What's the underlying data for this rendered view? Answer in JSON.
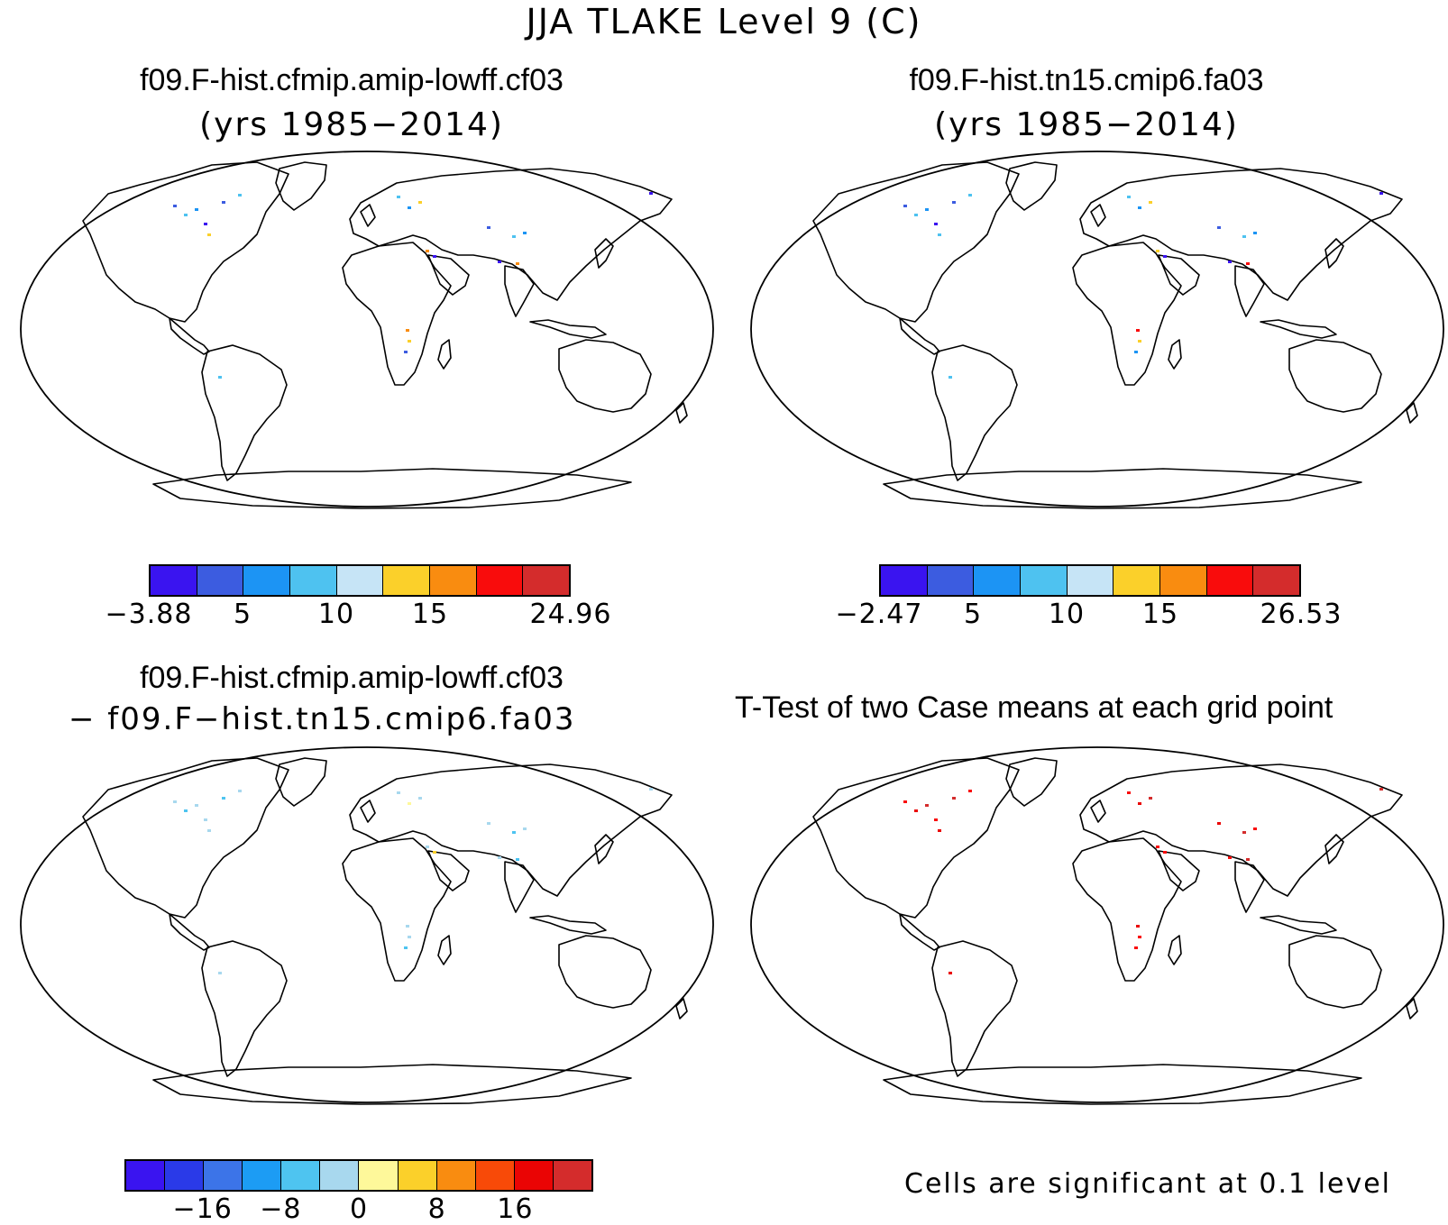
{
  "figure_title": "JJA TLAKE Level 9 (C)",
  "panels": {
    "top_left": {
      "case": "f09.F-hist.cfmip.amip-lowff.cf03",
      "years": "(yrs 1985−2014)",
      "colorbar": {
        "colors": [
          "#3a14f0",
          "#3c5ce0",
          "#1c94f4",
          "#4ec2f0",
          "#c6e4f6",
          "#fbd02a",
          "#f98c10",
          "#f90c0c",
          "#d42c2c"
        ],
        "ticks": [
          "−3.88",
          "5",
          "10",
          "15",
          "24.96"
        ]
      }
    },
    "top_right": {
      "case": "f09.F-hist.tn15.cmip6.fa03",
      "years": "(yrs 1985−2014)",
      "colorbar": {
        "colors": [
          "#3a14f0",
          "#3c5ce0",
          "#1c94f4",
          "#4ec2f0",
          "#c6e4f6",
          "#fbd02a",
          "#f98c10",
          "#f90c0c",
          "#d42c2c"
        ],
        "ticks": [
          "−2.47",
          "5",
          "10",
          "15",
          "26.53"
        ]
      }
    },
    "bottom_left": {
      "case_a": "f09.F-hist.cfmip.amip-lowff.cf03",
      "case_b": "− f09.F−hist.tn15.cmip6.fa03",
      "colorbar": {
        "colors": [
          "#3a14f0",
          "#2a3ae8",
          "#3c74e8",
          "#1c9cf4",
          "#4ec4f0",
          "#a8d8ee",
          "#fef89a",
          "#fbd02a",
          "#f98c10",
          "#f84a08",
          "#ea0404",
          "#d42c2c"
        ],
        "ticks": [
          "−16",
          "−8",
          "0",
          "8",
          "16"
        ]
      }
    },
    "bottom_right": {
      "title": "T-Test of two Case means at each grid point",
      "note": "Cells are significant at 0.1 level"
    }
  }
}
